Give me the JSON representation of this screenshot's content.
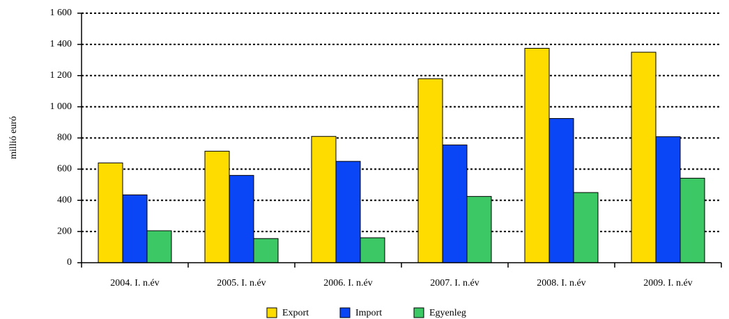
{
  "chart_data": {
    "type": "bar",
    "categories": [
      "2004. I. n.év",
      "2005. I. n.év",
      "2006. I. n.év",
      "2007. I. n.év",
      "2008. I. n.év",
      "2009. I. n.év"
    ],
    "series": [
      {
        "name": "Export",
        "color": "#ffdc00",
        "values": [
          640,
          715,
          810,
          1180,
          1375,
          1350
        ]
      },
      {
        "name": "Import",
        "color": "#0a46f5",
        "values": [
          435,
          560,
          650,
          755,
          925,
          808
        ]
      },
      {
        "name": "Egyenleg",
        "color": "#3cc864",
        "values": [
          205,
          155,
          160,
          425,
          450,
          542
        ]
      }
    ],
    "ylabel": "millió euró",
    "ylim": [
      0,
      1600
    ],
    "yticks": [
      0,
      200,
      400,
      600,
      800,
      {
        "value": 1000,
        "label": "1 000"
      },
      {
        "value": 1200,
        "label": "1 200"
      },
      {
        "value": 1400,
        "label": "1 400"
      },
      {
        "value": 1600,
        "label": "1 600"
      }
    ],
    "grid": true,
    "legend": "bottom"
  }
}
